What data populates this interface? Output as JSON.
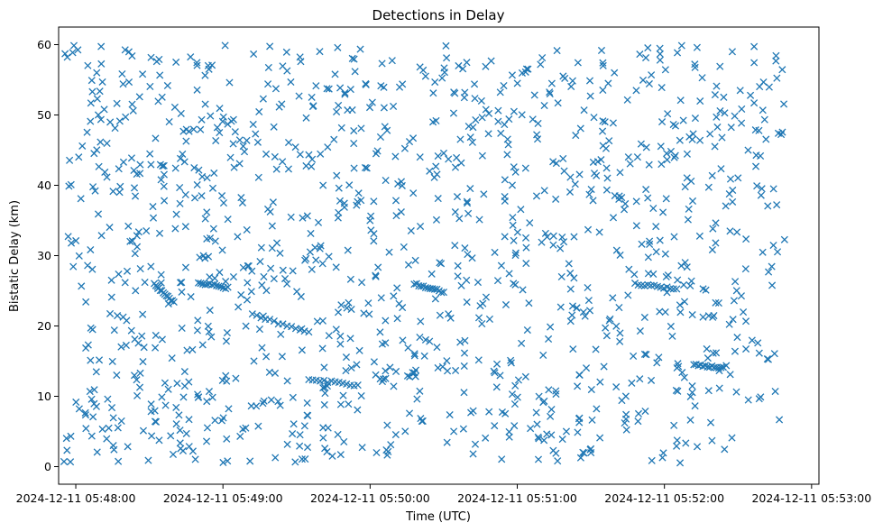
{
  "chart_data": {
    "type": "scatter",
    "title": "Detections in Delay",
    "xlabel": "Time (UTC)",
    "ylabel": "Bistatic Delay (km)",
    "marker": "x",
    "color": "#1f77b4",
    "grid": false,
    "xlim": [
      "2024-12-11 05:47:53",
      "2024-12-11 05:53:03"
    ],
    "ylim": [
      -2.5,
      62.5
    ],
    "xticks": [
      "2024-12-11 05:48:00",
      "2024-12-11 05:49:00",
      "2024-12-11 05:50:00",
      "2024-12-11 05:51:00",
      "2024-12-11 05:52:00",
      "2024-12-11 05:53:00"
    ],
    "yticks": [
      "0",
      "10",
      "20",
      "30",
      "40",
      "50",
      "60"
    ],
    "time_range": [
      "2024-12-11 05:47:55",
      "2024-12-11 05:52:49"
    ],
    "delay_range": [
      0.5,
      59.9
    ],
    "point_count": 1300,
    "features": {
      "clusters": [
        {
          "x": [
            "2024-12-11 05:48:32",
            "2024-12-11 05:48:40"
          ],
          "y": [
            23.3,
            26.0
          ]
        },
        {
          "x": [
            "2024-12-11 05:48:50",
            "2024-12-11 05:49:02"
          ],
          "y": [
            25.4,
            26.2
          ]
        },
        {
          "x": [
            "2024-12-11 05:49:12",
            "2024-12-11 05:49:35"
          ],
          "y": [
            19.0,
            21.6
          ]
        },
        {
          "x": [
            "2024-12-11 05:49:35",
            "2024-12-11 05:49:55"
          ],
          "y": [
            11.5,
            12.5
          ]
        },
        {
          "x": [
            "2024-12-11 05:50:18",
            "2024-12-11 05:50:30"
          ],
          "y": [
            24.8,
            26.0
          ]
        },
        {
          "x": [
            "2024-12-11 05:51:48",
            "2024-12-11 05:52:05"
          ],
          "y": [
            25.3,
            26.0
          ]
        },
        {
          "x": [
            "2024-12-11 05:52:12",
            "2024-12-11 05:52:24"
          ],
          "y": [
            14.0,
            14.5
          ]
        }
      ]
    }
  }
}
